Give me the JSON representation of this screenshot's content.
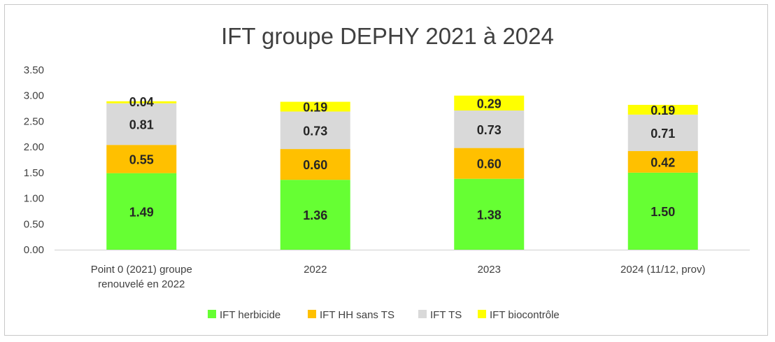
{
  "chart_data": {
    "type": "bar",
    "stacked": true,
    "title": "IFT groupe DEPHY 2021 à 2024",
    "xlabel": "",
    "ylabel": "",
    "ylim": [
      0,
      3.5
    ],
    "yticks": [
      "0.00",
      "0.50",
      "1.00",
      "1.50",
      "2.00",
      "2.50",
      "3.00",
      "3.50"
    ],
    "categories": [
      [
        "Point 0 (2021) groupe",
        "renouvelé en 2022"
      ],
      [
        "2022"
      ],
      [
        "2023"
      ],
      [
        "2024 (11/12, prov)"
      ]
    ],
    "series": [
      {
        "name": "IFT herbicide",
        "color": "#66ff33",
        "values": [
          1.49,
          1.36,
          1.38,
          1.5
        ],
        "labels": [
          "1.49",
          "1.36",
          "1.38",
          "1.50"
        ]
      },
      {
        "name": "IFT HH sans TS",
        "color": "#ffc000",
        "values": [
          0.55,
          0.6,
          0.6,
          0.42
        ],
        "labels": [
          "0.55",
          "0.60",
          "0.60",
          "0.42"
        ]
      },
      {
        "name": "IFT TS",
        "color": "#d9d9d9",
        "values": [
          0.81,
          0.73,
          0.73,
          0.71
        ],
        "labels": [
          "0.81",
          "0.73",
          "0.73",
          "0.71"
        ]
      },
      {
        "name": "IFT biocontrôle",
        "color": "#ffff00",
        "values": [
          0.04,
          0.19,
          0.29,
          0.19
        ],
        "labels": [
          "0.04",
          "0.19",
          "0.29",
          "0.19"
        ]
      }
    ],
    "legend_position": "bottom",
    "grid": false
  }
}
